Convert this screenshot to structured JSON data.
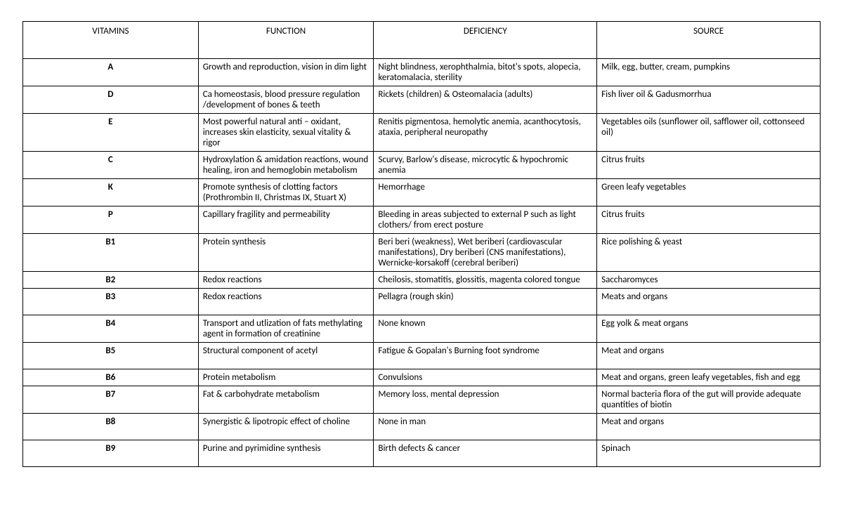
{
  "table": {
    "headers": {
      "vitamins": "VITAMINS",
      "function": "FUNCTION",
      "deficiency": "DEFICIENCY",
      "source": "SOURCE"
    },
    "rows": [
      {
        "vitamin": "A",
        "function": "Growth and reproduction, vision in dim light",
        "deficiency": "Night blindness, xerophthalmia, bitot's spots, alopecia, keratomalacia, sterility",
        "source": "Milk, egg, butter, cream, pumpkins"
      },
      {
        "vitamin": "D",
        "function": "Ca homeostasis, blood pressure regulation /development of bones & teeth",
        "deficiency": "Rickets (children) & Osteomalacia (adults)",
        "source": "Fish liver oil & Gadusmorrhua"
      },
      {
        "vitamin": "E",
        "function": "Most powerful natural anti – oxidant, increases skin elasticity, sexual vitality & rigor",
        "deficiency": "Renitis pigmentosa, hemolytic anemia, acanthocytosis, ataxia, peripheral neuropathy",
        "source": "Vegetables oils (sunflower oil, safflower oil, cottonseed oil)"
      },
      {
        "vitamin": "C",
        "function": "Hydroxylation & amidation reactions, wound healing, iron and hemoglobin metabolism",
        "deficiency": "Scurvy, Barlow's disease, microcytic & hypochromic anemia",
        "source": "Citrus fruits"
      },
      {
        "vitamin": "K",
        "function": "Promote synthesis of clotting factors (Prothrombin II, Christmas IX,\nStuart X)",
        "deficiency": "Hemorrhage",
        "source": "Green leafy vegetables"
      },
      {
        "vitamin": "P",
        "function": "Capillary fragility and permeability",
        "deficiency": "Bleeding in areas subjected to external P such as light clothers/ from erect posture",
        "source": "Citrus fruits"
      },
      {
        "vitamin": "B1",
        "function": "Protein synthesis",
        "deficiency": "Beri beri (weakness), Wet beriberi (cardiovascular manifestations), Dry beriberi (CNS manifestations), Wernicke-korsakoff (cerebral beriberi)",
        "source": "Rice polishing & yeast"
      },
      {
        "vitamin": "B2",
        "function": "Redox reactions",
        "deficiency": "Cheilosis, stomatitis, glossitis, magenta colored tongue",
        "source": "Saccharomyces"
      },
      {
        "vitamin": "B3",
        "function": "Redox reactions",
        "deficiency": " Pellagra (rough skin)",
        "source": "Meats and organs",
        "tall": true
      },
      {
        "vitamin": "B4",
        "function": "Transport and utlization of fats methylating agent in formation of creatinine",
        "deficiency": "None known",
        "source": "Egg yolk & meat organs"
      },
      {
        "vitamin": "B5",
        "function": "Structural component of acetyl",
        "deficiency": "Fatigue & Gopalan's Burning foot syndrome",
        "source": "Meat and organs",
        "tall": true
      },
      {
        "vitamin": "B6",
        "function": "Protein metabolism",
        "deficiency": "Convulsions",
        "source": "Meat and organs, green leafy vegetables, fish and egg"
      },
      {
        "vitamin": "B7",
        "function": "Fat & carbohydrate metabolism",
        "deficiency": " Memory loss, mental depression",
        "source": "Normal bacteria flora of the gut will provide adequate quantities of biotin"
      },
      {
        "vitamin": "B8",
        "function": "Synergistic & lipotropic effect of choline",
        "deficiency": "None in man",
        "source": "Meat and organs",
        "tall": true
      },
      {
        "vitamin": "B9",
        "function": "Purine and pyrimidine synthesis",
        "deficiency": "Birth defects & cancer",
        "source": "Spinach",
        "tall": true
      }
    ]
  }
}
